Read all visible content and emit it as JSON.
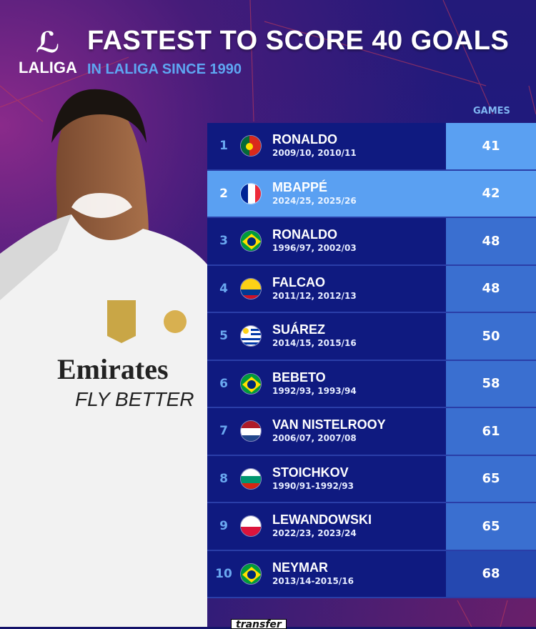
{
  "header": {
    "logo_mark": "ℒ",
    "logo_word": "LALIGA",
    "title": "FASTEST TO SCORE 40 GOALS",
    "subtitle": "IN LALIGA SINCE 1990"
  },
  "table": {
    "games_header": "GAMES",
    "rows": [
      {
        "rank": "1",
        "name": "RONALDO",
        "seasons": "2009/10, 2010/11",
        "games": "41",
        "flag": "portugal"
      },
      {
        "rank": "2",
        "name": "MBAPPÉ",
        "seasons": "2024/25, 2025/26",
        "games": "42",
        "flag": "france",
        "highlighted": true
      },
      {
        "rank": "3",
        "name": "RONALDO",
        "seasons": "1996/97, 2002/03",
        "games": "48",
        "flag": "brazil"
      },
      {
        "rank": "4",
        "name": "FALCAO",
        "seasons": "2011/12, 2012/13",
        "games": "48",
        "flag": "colombia"
      },
      {
        "rank": "5",
        "name": "SUÁREZ",
        "seasons": "2014/15, 2015/16",
        "games": "50",
        "flag": "uruguay"
      },
      {
        "rank": "6",
        "name": "BEBETO",
        "seasons": "1992/93, 1993/94",
        "games": "58",
        "flag": "brazil"
      },
      {
        "rank": "7",
        "name": "VAN NISTELROOY",
        "seasons": "2006/07, 2007/08",
        "games": "61",
        "flag": "netherlands"
      },
      {
        "rank": "8",
        "name": "STOICHKOV",
        "seasons": "1990/91-1992/93",
        "games": "65",
        "flag": "bulgaria"
      },
      {
        "rank": "9",
        "name": "LEWANDOWSKI",
        "seasons": "2022/23, 2023/24",
        "games": "65",
        "flag": "poland"
      },
      {
        "rank": "10",
        "name": "NEYMAR",
        "seasons": "2013/14-2015/16",
        "games": "68",
        "flag": "brazil"
      }
    ]
  },
  "player_shirt": {
    "sponsor_line1": "Emirates",
    "sponsor_line2": "FLY BETTER"
  },
  "watermark": "transfer",
  "colors": {
    "background": "#1a1b80",
    "row_dark": "#0f1a80",
    "highlight": "#5aa0f2",
    "games_cell": "#3a6fd0",
    "subtitle": "#5ea6f2"
  }
}
